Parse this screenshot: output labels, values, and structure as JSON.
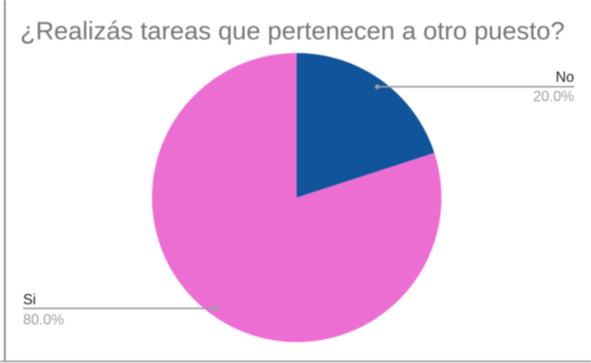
{
  "chart_data": {
    "type": "pie",
    "title": "¿Realizás tareas que pertenecen a otro puesto?",
    "slices": [
      {
        "label": "No",
        "value": 20.0,
        "pct_label": "20.0%",
        "color": "#10549b",
        "label_side": "right"
      },
      {
        "label": "Si",
        "value": 80.0,
        "pct_label": "80.0%",
        "color": "#ed6ed3",
        "label_side": "left"
      }
    ],
    "start_angle_deg": 0,
    "direction": "clockwise",
    "legend_position": "labeled",
    "grid": false
  },
  "colors": {
    "title_text": "#757575",
    "label_text": "#212121",
    "pct_text": "#9e9e9e",
    "leader_line": "#9e9e9e",
    "leader_dot": "#9e9e9e",
    "border_left": "#7f7f7f",
    "border_bottom": "#9b9b9b",
    "background": "#ffffff"
  }
}
